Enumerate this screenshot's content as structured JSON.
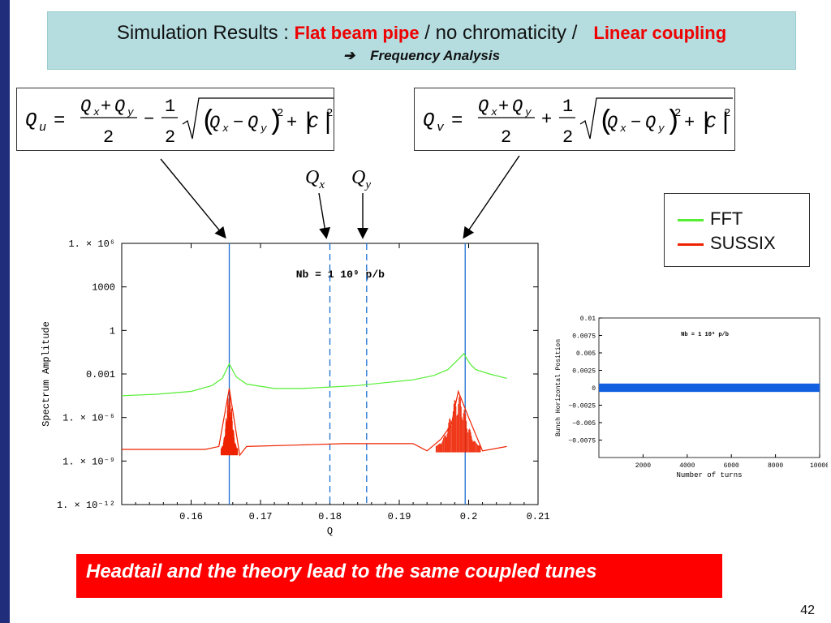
{
  "title": {
    "prefix": "Simulation Results  :",
    "highlight1": "Flat beam pipe",
    "middle": " / no chromaticity  /",
    "highlight2": "Linear coupling",
    "subtitle_arrow": "➔",
    "subtitle": "Frequency Analysis"
  },
  "formulas": {
    "qu_lhs": "Q",
    "qu_sub": "u",
    "qv_lhs": "Q",
    "qv_sub": "v"
  },
  "q_labels": {
    "qx": "Q",
    "qx_sub": "x",
    "qy": "Q",
    "qy_sub": "y"
  },
  "legend": {
    "items": [
      {
        "label": "FFT",
        "color": "#55ee33"
      },
      {
        "label": "SUSSIX",
        "color": "#ee2200"
      }
    ]
  },
  "banner": "Headtail and the theory lead to the same coupled tunes",
  "page_number": "42",
  "chart_data": [
    {
      "type": "line",
      "title": "",
      "annotation": "Nb = 1 10⁹ p/b",
      "xlabel": "Q",
      "ylabel": "Spectrum Amplitude",
      "xlim": [
        0.15,
        0.21
      ],
      "ylim_log10": [
        -12,
        6
      ],
      "y_scale": "log",
      "x_ticks": [
        "0.16",
        "0.17",
        "0.18",
        "0.19",
        "0.2",
        "0.21"
      ],
      "y_ticks": [
        {
          "value_log10": 6,
          "label": "1. × 10⁶"
        },
        {
          "value_log10": 3,
          "label": "1000"
        },
        {
          "value_log10": 0,
          "label": "1"
        },
        {
          "value_log10": -3,
          "label": "0.001"
        },
        {
          "value_log10": -6,
          "label": "1. × 10⁻⁶"
        },
        {
          "value_log10": -9,
          "label": "1. × 10⁻⁹"
        },
        {
          "value_log10": -12,
          "label": "1. × 10⁻¹²"
        }
      ],
      "vertical_lines": [
        {
          "x": 0.1655,
          "style": "solid"
        },
        {
          "x": 0.18,
          "style": "dashed"
        },
        {
          "x": 0.1853,
          "style": "dashed"
        },
        {
          "x": 0.1995,
          "style": "solid"
        }
      ],
      "series": [
        {
          "color": "#55ee33",
          "x": [
            0.15,
            0.155,
            0.16,
            0.163,
            0.1645,
            0.1655,
            0.1665,
            0.168,
            0.172,
            0.176,
            0.18,
            0.184,
            0.188,
            0.192,
            0.195,
            0.197,
            0.1985,
            0.1993,
            0.2002,
            0.201,
            0.203,
            0.2055
          ],
          "log10_y": [
            -4.5,
            -4.4,
            -4.2,
            -3.8,
            -3.3,
            -2.3,
            -3.2,
            -3.7,
            -4.0,
            -4.0,
            -3.9,
            -3.8,
            -3.6,
            -3.4,
            -3.1,
            -2.7,
            -2.0,
            -1.6,
            -2.3,
            -2.7,
            -3.0,
            -3.3
          ]
        },
        {
          "color": "#ee2200",
          "x": [
            0.15,
            0.158,
            0.162,
            0.164,
            0.1655,
            0.167,
            0.168,
            0.175,
            0.182,
            0.188,
            0.192,
            0.194,
            0.196,
            0.1975,
            0.1985,
            0.2,
            0.202,
            0.2055
          ],
          "log10_y": [
            -8.2,
            -8.2,
            -8.2,
            -8.0,
            -4.0,
            -8.6,
            -8.0,
            -7.9,
            -7.8,
            -7.8,
            -7.8,
            -8.3,
            -7.5,
            -6.5,
            -4.2,
            -6.0,
            -8.3,
            -8.0
          ]
        }
      ]
    },
    {
      "type": "line",
      "title": "",
      "annotation": "Nb = 1 10⁹ p/b",
      "xlabel": "Number of turns",
      "ylabel": "Bunch Horizontal Position",
      "xlim": [
        0,
        10000
      ],
      "ylim": [
        -0.01,
        0.01
      ],
      "x_ticks": [
        "2000",
        "4000",
        "6000",
        "8000",
        "10000"
      ],
      "y_ticks": [
        "0.01",
        "0.0075",
        "0.005",
        "0.0025",
        "0",
        "−0.0025",
        "−0.005",
        "−0.0075"
      ],
      "series": [
        {
          "color": "#1060e0",
          "amplitude": 0.0006
        }
      ]
    }
  ]
}
